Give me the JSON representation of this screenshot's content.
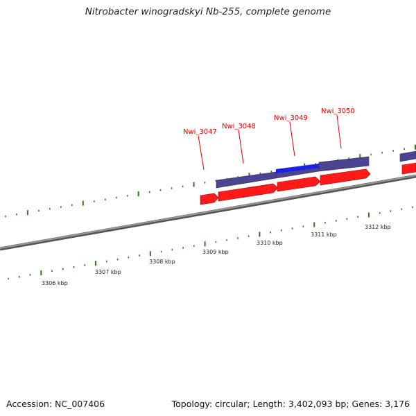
{
  "title": "Nitrobacter winogradskyi Nb-255, complete genome",
  "footer": {
    "accession": "Accession: NC_007406",
    "topology": "Topology: circular; Length: 3,402,093 bp; Genes: 3,176"
  },
  "scale_labels": [
    "3306 kbp",
    "3307 kbp",
    "3308 kbp",
    "3309 kbp",
    "3310 kbp",
    "3311 kbp",
    "3312 kbp"
  ],
  "gene_labels": [
    "Nwi_3047",
    "Nwi_3048",
    "Nwi_3049",
    "Nwi_3050"
  ],
  "colors": {
    "backbone": "#777777",
    "tick": "#2a7a1a",
    "gene": "#ff0000",
    "gene_label": "#e00000",
    "cds_band": "#4b4490",
    "cds_highlight": "#1a22e6"
  }
}
